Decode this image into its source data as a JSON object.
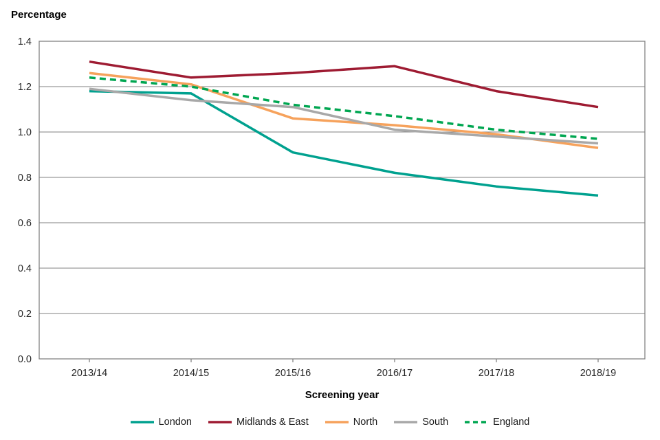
{
  "chart": {
    "title": "Percentage",
    "xlabel": "Screening year"
  },
  "chart_data": {
    "type": "line",
    "title": "Percentage",
    "xlabel": "Screening year",
    "ylabel": "",
    "categories": [
      "2013/14",
      "2014/15",
      "2015/16",
      "2016/17",
      "2017/18",
      "2018/19"
    ],
    "series": [
      {
        "name": "London",
        "color": "#00A18F",
        "dash": "solid",
        "values": [
          1.18,
          1.17,
          0.91,
          0.82,
          0.76,
          0.72
        ]
      },
      {
        "name": "Midlands & East",
        "color": "#9E1B32",
        "dash": "solid",
        "values": [
          1.31,
          1.24,
          1.26,
          1.29,
          1.18,
          1.11
        ]
      },
      {
        "name": "North",
        "color": "#F6A25C",
        "dash": "solid",
        "values": [
          1.26,
          1.21,
          1.06,
          1.03,
          0.99,
          0.93
        ]
      },
      {
        "name": "South",
        "color": "#A8A8A8",
        "dash": "solid",
        "values": [
          1.19,
          1.14,
          1.11,
          1.01,
          0.98,
          0.95
        ]
      },
      {
        "name": "England",
        "color": "#00A651",
        "dash": "dashed",
        "values": [
          1.24,
          1.2,
          1.12,
          1.07,
          1.01,
          0.97
        ]
      }
    ],
    "ylim": [
      0.0,
      1.4
    ],
    "ytick_step": 0.2,
    "yticks": [
      "0.0",
      "0.2",
      "0.4",
      "0.6",
      "0.8",
      "1.0",
      "1.2",
      "1.4"
    ],
    "grid": true,
    "legend_position": "bottom",
    "axis_color": "#828282",
    "tick_label_color": "#262626"
  }
}
